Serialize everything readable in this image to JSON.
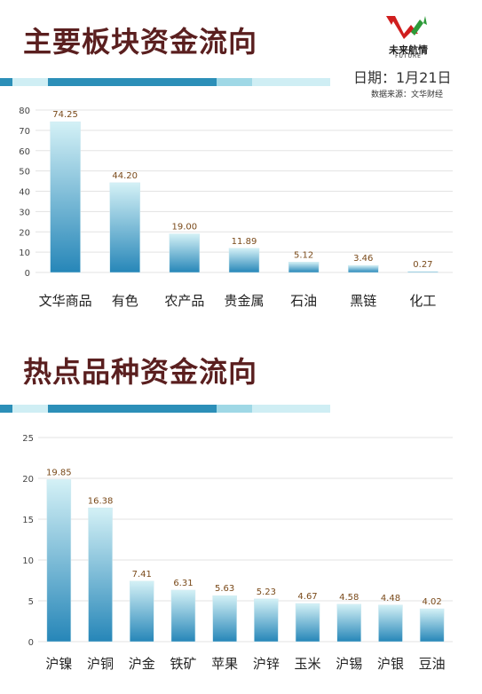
{
  "header": {
    "logo_text": "未来航情",
    "logo_sub": "FUTURE",
    "date": "日期：1月21日",
    "source": "数据来源：文华财经"
  },
  "section1": {
    "title": "主要板块资金流向"
  },
  "section2": {
    "title": "热点品种资金流向"
  },
  "colors": {
    "title": "#5a1f1f",
    "bar_top": "#d4f1f6",
    "bar_bottom": "#2686b8",
    "label": "#7a4a1a"
  },
  "chart_data": [
    {
      "type": "bar",
      "title": "主要板块资金流向",
      "categories": [
        "文华商品",
        "有色",
        "农产品",
        "贵金属",
        "石油",
        "黑链",
        "化工"
      ],
      "values": [
        74.25,
        44.2,
        19.0,
        11.89,
        5.12,
        3.46,
        0.27
      ],
      "value_labels": [
        "74.25",
        "44.20",
        "19.00",
        "11.89",
        "5.12",
        "3.46",
        "0.27"
      ],
      "yticks": [
        "0",
        "10",
        "20",
        "30",
        "40",
        "50",
        "60",
        "70",
        "80"
      ],
      "ylim": [
        0,
        80
      ],
      "grid": true
    },
    {
      "type": "bar",
      "title": "热点品种资金流向",
      "categories": [
        "沪镍",
        "沪铜",
        "沪金",
        "铁矿",
        "苹果",
        "沪锌",
        "玉米",
        "沪锡",
        "沪银",
        "豆油"
      ],
      "values": [
        19.85,
        16.38,
        7.41,
        6.31,
        5.63,
        5.23,
        4.67,
        4.58,
        4.48,
        4.02
      ],
      "value_labels": [
        "19.85",
        "16.38",
        "7.41",
        "6.31",
        "5.63",
        "5.23",
        "4.67",
        "4.58",
        "4.48",
        "4.02"
      ],
      "yticks": [
        "0",
        "5",
        "10",
        "15",
        "20",
        "25"
      ],
      "ylim": [
        0,
        25
      ],
      "grid": true
    }
  ]
}
